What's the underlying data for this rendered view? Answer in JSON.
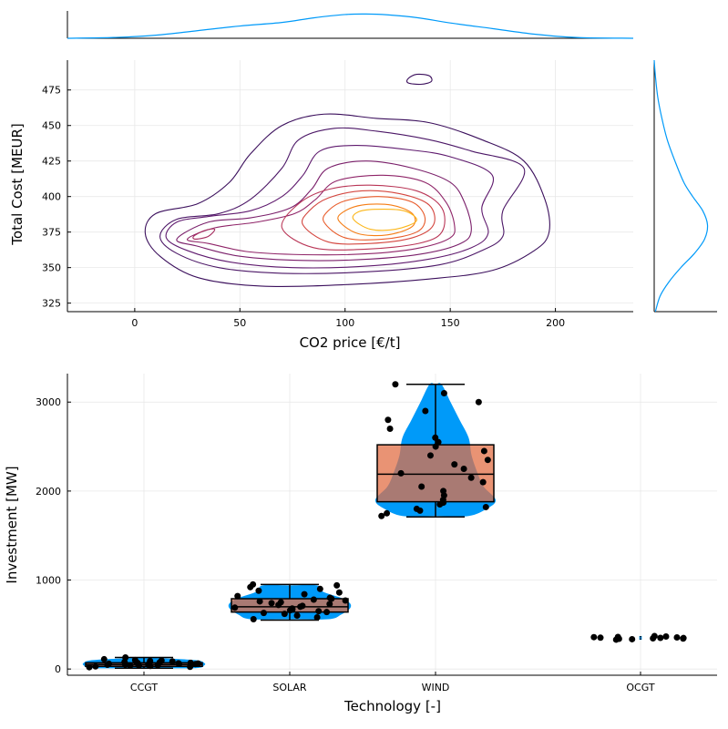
{
  "chart_data": [
    {
      "id": "contour",
      "type": "contour",
      "xlabel": "CO2 price [€/t]",
      "ylabel": "Total Cost [MEUR]",
      "xlim": [
        -32,
        237
      ],
      "ylim": [
        319,
        496
      ],
      "xticks": [
        0,
        50,
        100,
        150,
        200
      ],
      "yticks": [
        325,
        350,
        375,
        400,
        425,
        450,
        475
      ],
      "grid": true,
      "levels": [
        {
          "color": "#3b0f5c",
          "points": [
            [
              5,
              374
            ],
            [
              12,
              358
            ],
            [
              30,
              343
            ],
            [
              60,
              337
            ],
            [
              100,
              338
            ],
            [
              140,
              342
            ],
            [
              170,
              348
            ],
            [
              190,
              362
            ],
            [
              197,
              375
            ],
            [
              195,
              398
            ],
            [
              185,
              425
            ],
            [
              165,
              440
            ],
            [
              140,
              452
            ],
            [
              115,
              455
            ],
            [
              90,
              458
            ],
            [
              70,
              450
            ],
            [
              55,
              430
            ],
            [
              45,
              410
            ],
            [
              30,
              395
            ],
            [
              10,
              388
            ]
          ]
        },
        {
          "color": "#3b0f5c",
          "points": [
            [
              130,
              483
            ],
            [
              134,
              486
            ],
            [
              140,
              485
            ],
            [
              141,
              481
            ],
            [
              136,
              479
            ],
            [
              130,
              480
            ]
          ]
        },
        {
          "color": "#4b1666",
          "points": [
            [
              12,
              372
            ],
            [
              20,
              360
            ],
            [
              40,
              350
            ],
            [
              70,
              346
            ],
            [
              110,
              347
            ],
            [
              145,
              352
            ],
            [
              165,
              362
            ],
            [
              175,
              372
            ],
            [
              175,
              390
            ],
            [
              185,
              420
            ],
            [
              160,
              432
            ],
            [
              140,
              440
            ],
            [
              115,
              446
            ],
            [
              95,
              448
            ],
            [
              78,
              440
            ],
            [
              70,
              420
            ],
            [
              55,
              398
            ],
            [
              40,
              388
            ],
            [
              20,
              384
            ]
          ]
        },
        {
          "color": "#5f1a6e",
          "points": [
            [
              15,
              371
            ],
            [
              25,
              362
            ],
            [
              45,
              354
            ],
            [
              75,
              350
            ],
            [
              110,
              351
            ],
            [
              140,
              356
            ],
            [
              160,
              364
            ],
            [
              168,
              374
            ],
            [
              165,
              392
            ],
            [
              170,
              415
            ],
            [
              150,
              428
            ],
            [
              130,
              433
            ],
            [
              105,
              436
            ],
            [
              88,
              432
            ],
            [
              80,
              415
            ],
            [
              70,
              400
            ],
            [
              55,
              390
            ],
            [
              35,
              386
            ],
            [
              20,
              382
            ]
          ]
        },
        {
          "color": "#7a1f6a",
          "points": [
            [
              20,
              370
            ],
            [
              30,
              365
            ],
            [
              50,
              358
            ],
            [
              80,
              355
            ],
            [
              112,
              356
            ],
            [
              138,
              360
            ],
            [
              155,
              367
            ],
            [
              160,
              376
            ],
            [
              157,
              395
            ],
            [
              150,
              410
            ],
            [
              132,
              420
            ],
            [
              110,
              425
            ],
            [
              92,
              420
            ],
            [
              84,
              405
            ],
            [
              74,
              392
            ],
            [
              55,
              385
            ],
            [
              35,
              382
            ]
          ]
        },
        {
          "color": "#8f2468",
          "points": [
            [
              25,
              370
            ],
            [
              35,
              367
            ],
            [
              55,
              361
            ],
            [
              85,
              359
            ],
            [
              114,
              360
            ],
            [
              136,
              364
            ],
            [
              150,
              371
            ],
            [
              152,
              380
            ],
            [
              148,
              396
            ],
            [
              138,
              410
            ],
            [
              118,
              415
            ],
            [
              96,
              411
            ],
            [
              86,
              398
            ],
            [
              76,
              388
            ],
            [
              58,
              382
            ],
            [
              38,
              378
            ]
          ]
        },
        {
          "color": "#a52c60",
          "points": [
            [
              28,
              372
            ],
            [
              33,
              376
            ],
            [
              38,
              377
            ],
            [
              35,
              372
            ],
            [
              29,
              370
            ]
          ]
        },
        {
          "color": "#b93556",
          "points": [
            [
              70,
              378
            ],
            [
              85,
              364
            ],
            [
              110,
              363
            ],
            [
              135,
              367
            ],
            [
              146,
              375
            ],
            [
              146,
              392
            ],
            [
              134,
              404
            ],
            [
              112,
              408
            ],
            [
              92,
              405
            ],
            [
              78,
              395
            ]
          ]
        },
        {
          "color": "#d4463f",
          "points": [
            [
              80,
              380
            ],
            [
              92,
              368
            ],
            [
              112,
              367
            ],
            [
              132,
              371
            ],
            [
              142,
              380
            ],
            [
              140,
              394
            ],
            [
              126,
              402
            ],
            [
              108,
              404
            ],
            [
              92,
              399
            ],
            [
              83,
              390
            ]
          ]
        },
        {
          "color": "#e85b2a",
          "points": [
            [
              90,
              382
            ],
            [
              100,
              371
            ],
            [
              118,
              370
            ],
            [
              134,
              375
            ],
            [
              138,
              385
            ],
            [
              132,
              396
            ],
            [
              116,
              400
            ],
            [
              100,
              397
            ],
            [
              92,
              390
            ]
          ]
        },
        {
          "color": "#f57d15",
          "points": [
            [
              97,
              383
            ],
            [
              106,
              374
            ],
            [
              120,
              373
            ],
            [
              132,
              379
            ],
            [
              132,
              388
            ],
            [
              122,
              394
            ],
            [
              108,
              394
            ],
            [
              99,
              389
            ]
          ]
        },
        {
          "color": "#fbb61a",
          "points": [
            [
              104,
              384
            ],
            [
              112,
              377
            ],
            [
              124,
              377
            ],
            [
              134,
              383
            ],
            [
              128,
              390
            ],
            [
              114,
              391
            ],
            [
              106,
              389
            ]
          ]
        }
      ],
      "marginal_x_density": {
        "color": "#009af9",
        "x": [
          -32,
          -10,
          10,
          30,
          50,
          70,
          85,
          100,
          110,
          120,
          135,
          150,
          170,
          190,
          210,
          237
        ],
        "y": [
          0.0,
          0.03,
          0.12,
          0.3,
          0.48,
          0.62,
          0.8,
          0.93,
          0.95,
          0.92,
          0.8,
          0.6,
          0.38,
          0.16,
          0.03,
          0.0
        ]
      },
      "marginal_y_density": {
        "color": "#009af9",
        "y": [
          319,
          330,
          340,
          350,
          360,
          370,
          380,
          390,
          400,
          410,
          425,
          440,
          455,
          470,
          485,
          496
        ],
        "d": [
          0.02,
          0.1,
          0.25,
          0.45,
          0.68,
          0.85,
          0.9,
          0.82,
          0.65,
          0.5,
          0.35,
          0.22,
          0.13,
          0.06,
          0.02,
          0.0
        ]
      }
    },
    {
      "id": "violin",
      "type": "violin",
      "xlabel": "Technology [-]",
      "ylabel": "Investment [MW]",
      "categories": [
        "CCGT",
        "SOLAR",
        "WIND",
        "OCGT"
      ],
      "ylim": [
        -70,
        3320
      ],
      "yticks": [
        0,
        1000,
        2000,
        3000
      ],
      "grid": true,
      "violin_color": "#009af9",
      "box_color": "#e26f46",
      "point_color": "#000000",
      "groups": [
        {
          "name": "CCGT",
          "violin": [
            [
              10,
              0.85
            ],
            [
              40,
              1.0
            ],
            [
              70,
              1.0
            ],
            [
              100,
              0.85
            ],
            [
              125,
              0.2
            ]
          ],
          "box": {
            "min": 10,
            "q1": 30,
            "median": 50,
            "q3": 70,
            "max": 130
          },
          "points": [
            20,
            25,
            30,
            35,
            40,
            42,
            45,
            48,
            50,
            52,
            55,
            58,
            60,
            62,
            65,
            68,
            70,
            72,
            75,
            80,
            85,
            90,
            95,
            100,
            110,
            130
          ]
        },
        {
          "name": "SOLAR",
          "violin": [
            [
              560,
              0.65
            ],
            [
              610,
              0.85
            ],
            [
              680,
              1.0
            ],
            [
              740,
              1.0
            ],
            [
              800,
              0.85
            ],
            [
              870,
              0.55
            ],
            [
              940,
              0.45
            ]
          ],
          "box": {
            "min": 550,
            "q1": 640,
            "median": 700,
            "q3": 790,
            "max": 950
          },
          "points": [
            560,
            580,
            600,
            620,
            630,
            640,
            650,
            660,
            670,
            680,
            690,
            700,
            710,
            720,
            730,
            740,
            750,
            760,
            770,
            780,
            790,
            800,
            820,
            840,
            860,
            880,
            900,
            920,
            940,
            950
          ]
        },
        {
          "name": "WIND",
          "violin": [
            [
              1720,
              0.55
            ],
            [
              1800,
              0.85
            ],
            [
              1900,
              1.0
            ],
            [
              2050,
              0.8
            ],
            [
              2200,
              0.7
            ],
            [
              2400,
              0.6
            ],
            [
              2600,
              0.55
            ],
            [
              2800,
              0.4
            ],
            [
              3000,
              0.25
            ],
            [
              3200,
              0.1
            ]
          ],
          "box": {
            "min": 1710,
            "q1": 1880,
            "median": 2190,
            "q3": 2520,
            "max": 3200
          },
          "points": [
            1720,
            1750,
            1780,
            1800,
            1820,
            1850,
            1870,
            1900,
            1950,
            2000,
            2050,
            2100,
            2150,
            2200,
            2250,
            2300,
            2350,
            2400,
            2450,
            2500,
            2550,
            2600,
            2700,
            2800,
            2900,
            3000,
            3100,
            3200
          ]
        },
        {
          "name": "OCGT",
          "violin": [
            [
              330,
              0.02
            ],
            [
              350,
              0.02
            ],
            [
              370,
              0.02
            ]
          ],
          "box": {
            "min": 330,
            "q1": 345,
            "median": 350,
            "q3": 355,
            "max": 370
          },
          "points": [
            330,
            335,
            340,
            342,
            345,
            348,
            350,
            352,
            355,
            358,
            360,
            365,
            370
          ]
        }
      ]
    }
  ]
}
